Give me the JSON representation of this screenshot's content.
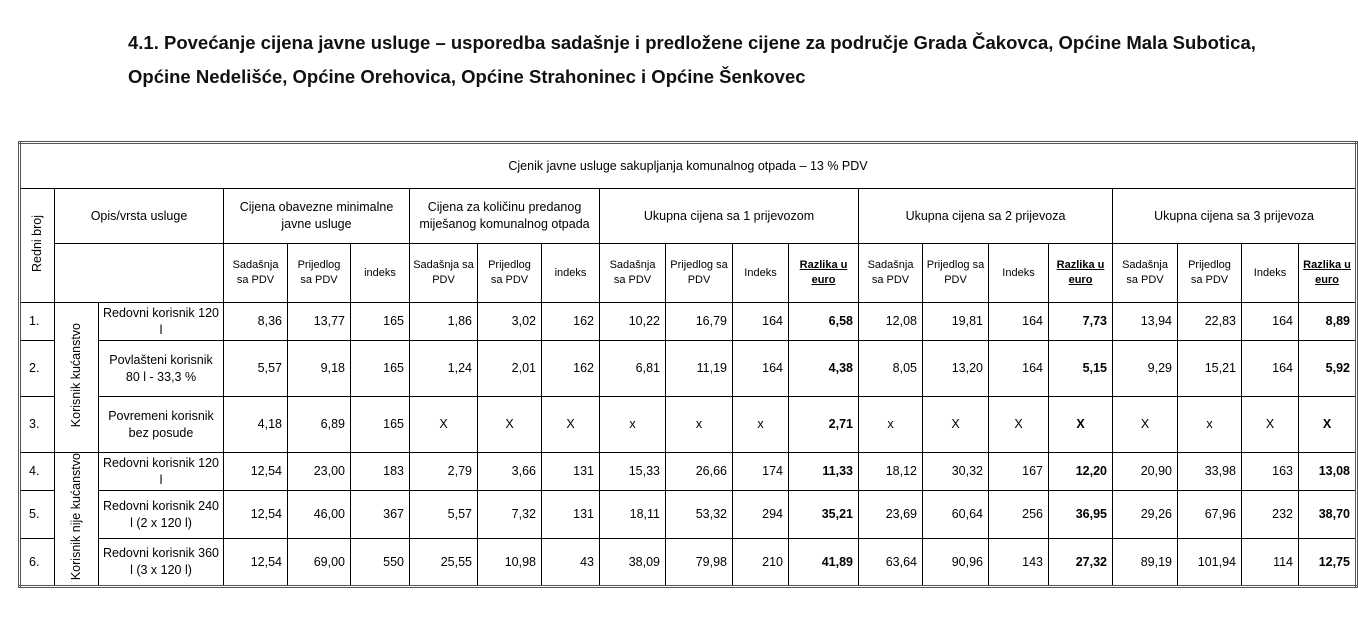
{
  "title": "4.1. Povećanje cijena javne usluge – usporedba sadašnje i predložene cijene za područje Grada Čakovca, Općine Mala Subotica, Općine Nedelišće, Općine Orehovica, Općine Strahoninec i  Općine Šenkovec",
  "table": {
    "caption": "Cjenik javne usluge sakupljanja komunalnog otpada  – 13 % PDV",
    "headers": {
      "redni_broj": "Redni broj",
      "opis": "Opis/vrsta usluge",
      "groups": [
        "Cijena obavezne minimalne javne usluge",
        "Cijena za količinu predanog miješanog komunalnog otpada",
        "Ukupna cijena sa 1 prijevozom",
        "Ukupna cijena sa 2 prijevoza",
        "Ukupna cijena sa 3 prijevoza"
      ],
      "sub": [
        "Sadašnja sa PDV",
        "Prijedlog sa PDV",
        "indeks",
        "Sadašnja sa PDV",
        "Prijedlog sa PDV",
        "indeks",
        "Sadašnja sa PDV",
        "Prijedlog sa PDV",
        "Indeks",
        "Razlika u euro",
        "Sadašnja sa PDV",
        "Prijedlog sa PDV",
        "Indeks",
        "Razlika u euro",
        "Sadašnja sa PDV",
        "Prijedlog sa PDV",
        "Indeks",
        "Razlika u euro"
      ]
    },
    "user_groups": [
      "Korisnik kućanstvo",
      "Korisnik nije kućanstvo"
    ],
    "rows": [
      {
        "no": "1.",
        "label": "Redovni korisnik 120 l",
        "cells": [
          "8,36",
          "13,77",
          "165",
          "1,86",
          "3,02",
          "162",
          "10,22",
          "16,79",
          "164",
          "6,58",
          "12,08",
          "19,81",
          "164",
          "7,73",
          "13,94",
          "22,83",
          "164",
          "8,89"
        ]
      },
      {
        "no": "2.",
        "label": "Povlašteni korisnik 80 l  - 33,3 %",
        "cells": [
          "5,57",
          "9,18",
          "165",
          "1,24",
          "2,01",
          "162",
          "6,81",
          "11,19",
          "164",
          "4,38",
          "8,05",
          "13,20",
          "164",
          "5,15",
          "9,29",
          "15,21",
          "164",
          "5,92"
        ]
      },
      {
        "no": "3.",
        "label": "Povremeni korisnik bez posude",
        "cells": [
          "4,18",
          "6,89",
          "165",
          "X",
          "X",
          "X",
          "x",
          "x",
          "x",
          "2,71",
          "x",
          "X",
          "X",
          "X",
          "X",
          "x",
          "X",
          "X"
        ]
      },
      {
        "no": "4.",
        "label": "Redovni korisnik 120 l",
        "cells": [
          "12,54",
          "23,00",
          "183",
          "2,79",
          "3,66",
          "131",
          "15,33",
          "26,66",
          "174",
          "11,33",
          "18,12",
          "30,32",
          "167",
          "12,20",
          "20,90",
          "33,98",
          "163",
          "13,08"
        ]
      },
      {
        "no": "5.",
        "label": "Redovni korisnik 240 l (2 x 120 l)",
        "cells": [
          "12,54",
          "46,00",
          "367",
          "5,57",
          "7,32",
          "131",
          "18,11",
          "53,32",
          "294",
          "35,21",
          "23,69",
          "60,64",
          "256",
          "36,95",
          "29,26",
          "67,96",
          "232",
          "38,70"
        ]
      },
      {
        "no": "6.",
        "label": "Redovni korisnik 360 l (3 x 120 l)",
        "cells": [
          "12,54",
          "69,00",
          "550",
          "25,55",
          "10,98",
          "43",
          "38,09",
          "79,98",
          "210",
          "41,89",
          "63,64",
          "90,96",
          "143",
          "27,32",
          "89,19",
          "101,94",
          "114",
          "12,75"
        ]
      }
    ]
  }
}
